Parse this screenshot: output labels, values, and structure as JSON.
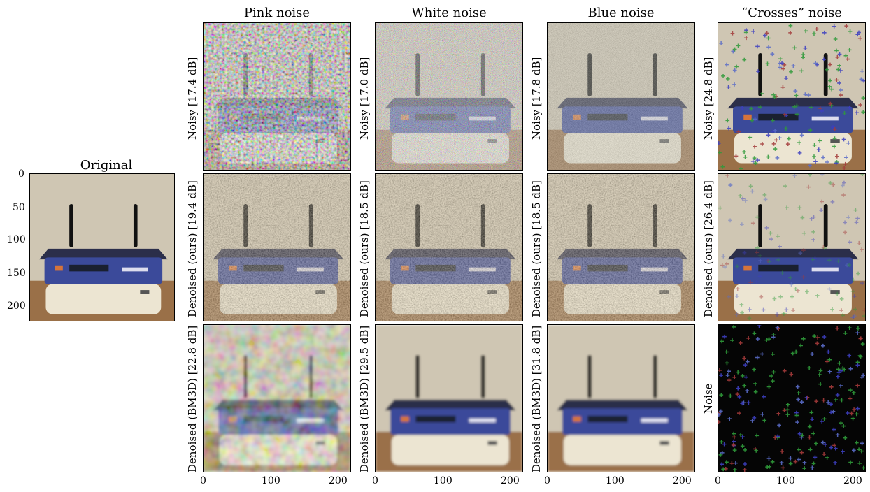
{
  "original": {
    "title": "Original",
    "yticks": [
      "0",
      "50",
      "100",
      "150",
      "200"
    ]
  },
  "columns": [
    {
      "title": "Pink noise",
      "noisy": "Noisy [17.4 dB]",
      "ours": "Denoised (ours) [19.4 dB]",
      "bm3d": "Denoised (BM3D) [22.8 dB]"
    },
    {
      "title": "White noise",
      "noisy": "Noisy [17.0 dB]",
      "ours": "Denoised (ours) [18.5 dB]",
      "bm3d": "Denoised (BM3D) [29.5 dB]"
    },
    {
      "title": "Blue noise",
      "noisy": "Noisy [17.8 dB]",
      "ours": "Denoised (ours) [18.5 dB]",
      "bm3d": "Denoised (BM3D) [31.8 dB]"
    },
    {
      "title": "“Crosses” noise",
      "noisy": "Noisy [24.8 dB]",
      "ours": "Denoised (ours) [26.4 dB]",
      "bm3d": "Noise"
    }
  ],
  "xticks": [
    "0",
    "100",
    "200"
  ]
}
